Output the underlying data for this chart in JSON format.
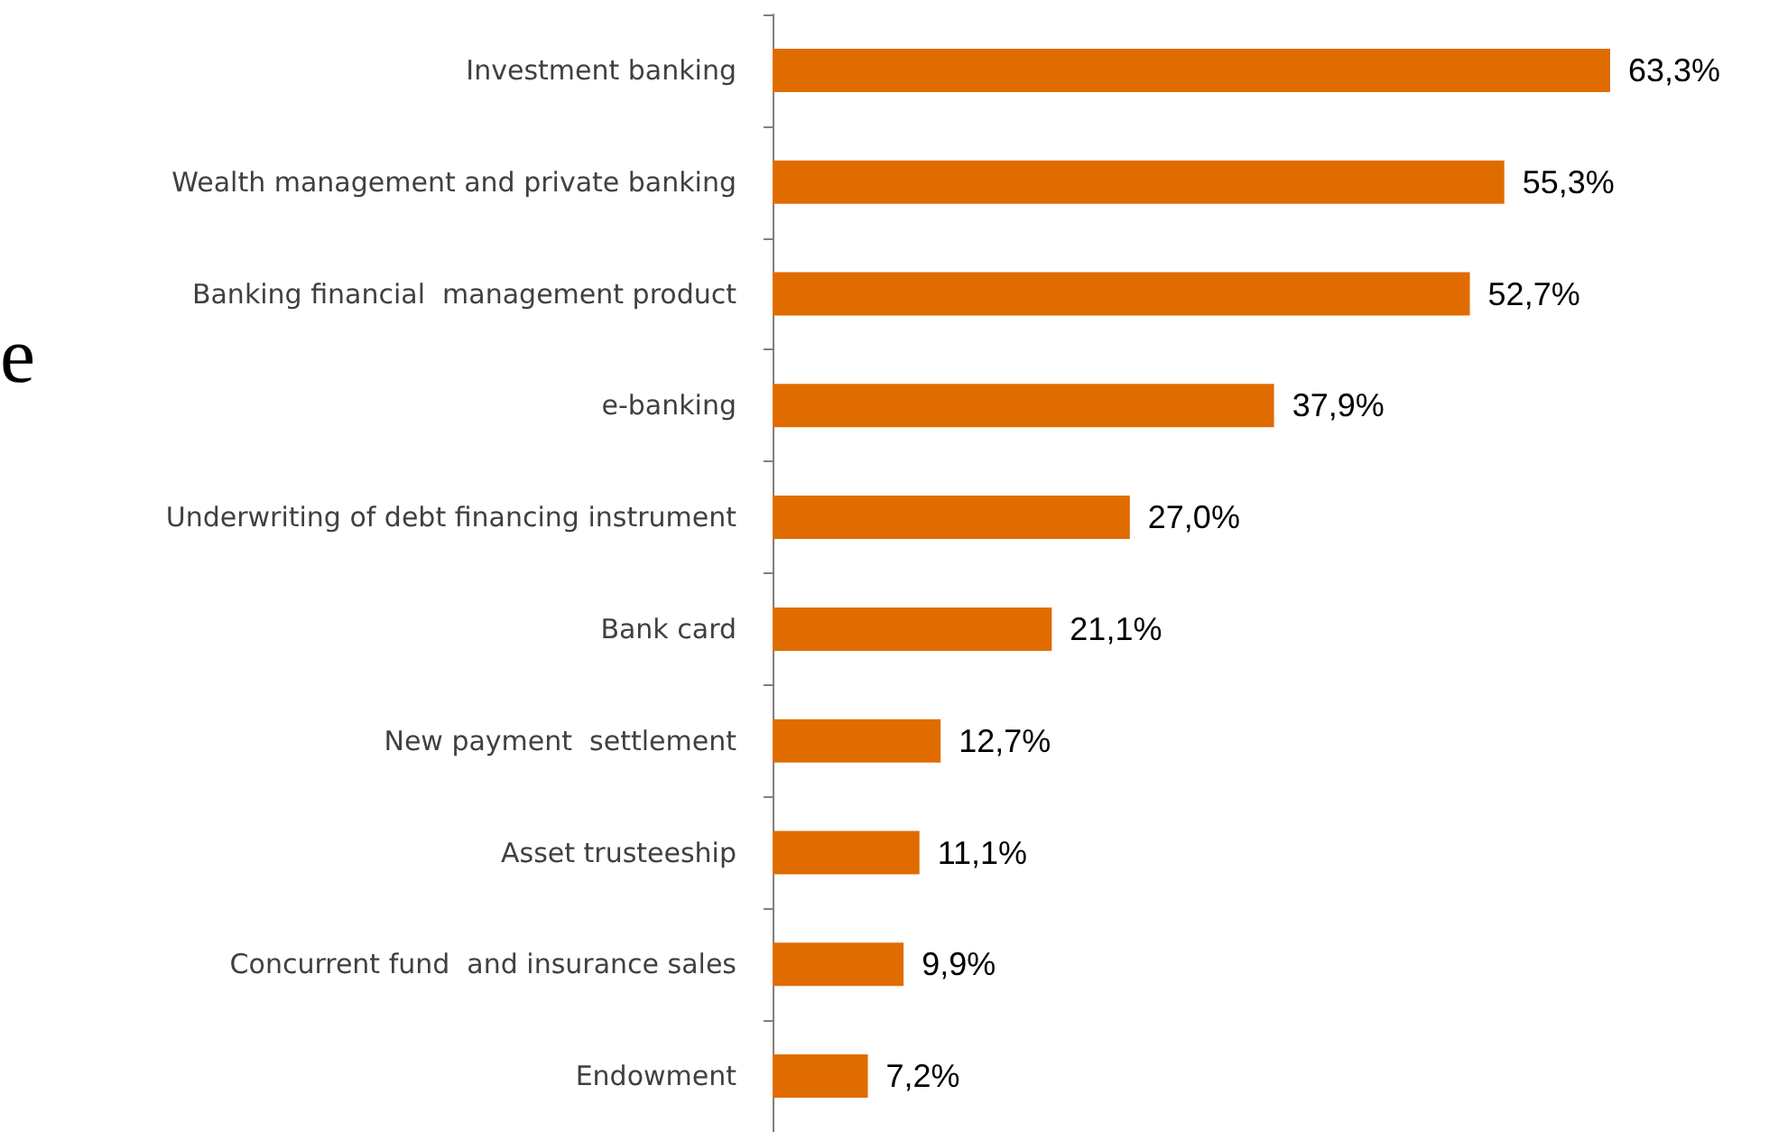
{
  "chart_data": {
    "type": "bar",
    "orientation": "horizontal",
    "categories": [
      "Investment banking",
      "Wealth management and private banking",
      "Banking financial  management product",
      "e-banking",
      "Underwriting of debt financing instrument",
      "Bank card",
      "New payment  settlement",
      "Asset trusteeship",
      "Concurrent fund  and insurance sales",
      "Endowment"
    ],
    "values": [
      63.3,
      55.3,
      52.7,
      37.9,
      27.0,
      21.1,
      12.7,
      11.1,
      9.9,
      7.2
    ],
    "value_labels": [
      "63,3%",
      "55,3%",
      "52,7%",
      "37,9%",
      "27,0%",
      "21,1%",
      "12,7%",
      "11,1%",
      "9,9%",
      "7,2%"
    ],
    "color": "#e06c00",
    "annotations": [
      "e"
    ]
  }
}
